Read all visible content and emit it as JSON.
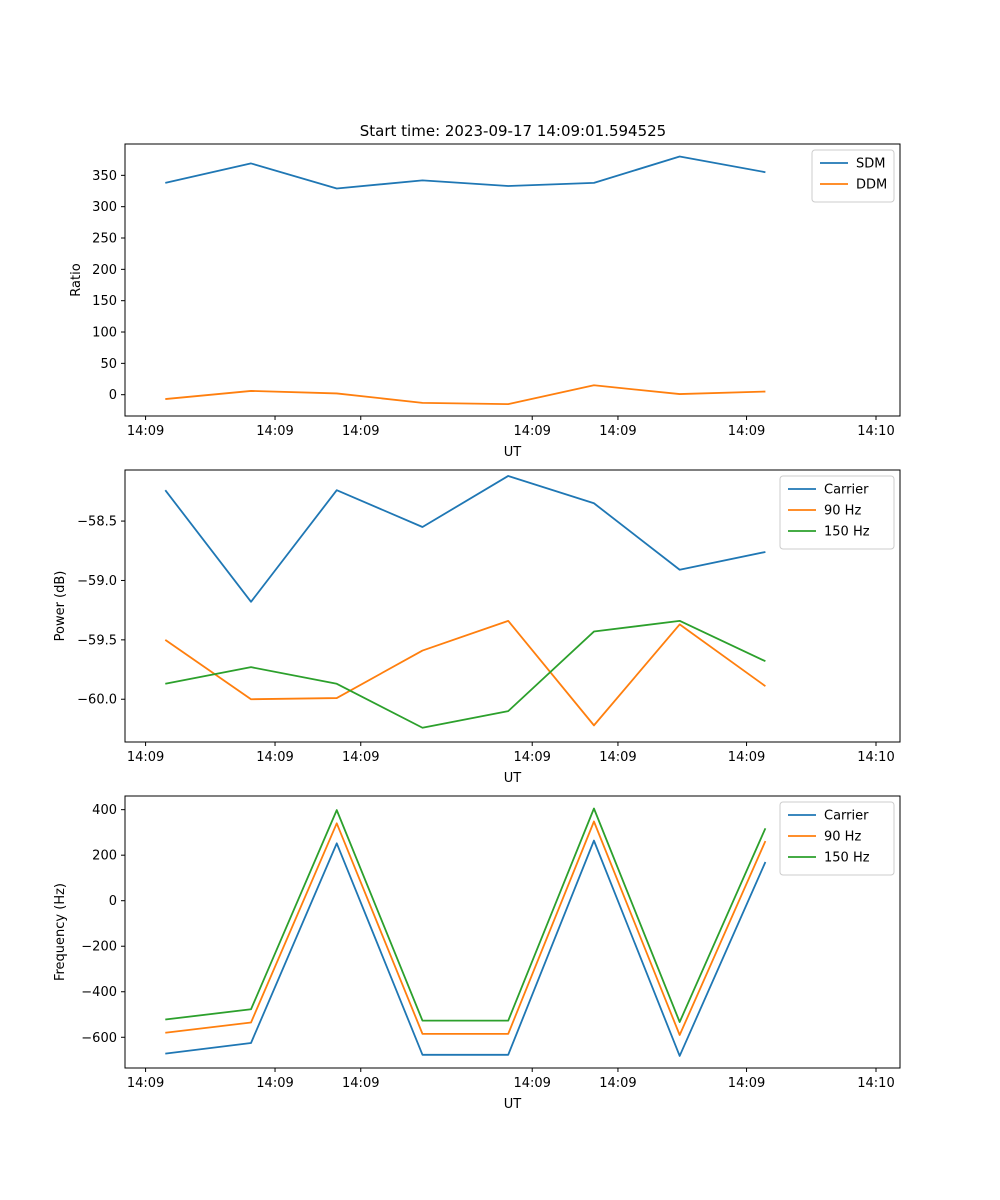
{
  "figure_title": "Start time: 2023-09-17 14:09:01.594525",
  "chart_data": [
    {
      "type": "line",
      "title": "Start time: 2023-09-17 14:09:01.594525",
      "xlabel": "UT",
      "ylabel": "Ratio",
      "x_index": [
        0,
        1,
        2,
        3,
        4,
        5,
        6,
        7
      ],
      "xlim": [
        -0.47,
        8.57
      ],
      "ylim": [
        -34,
        400
      ],
      "xticks": [
        {
          "value": -0.23,
          "label": "14:09"
        },
        {
          "value": 1.28,
          "label": "14:09"
        },
        {
          "value": 2.28,
          "label": "14:09"
        },
        {
          "value": 4.28,
          "label": "14:09"
        },
        {
          "value": 5.28,
          "label": "14:09"
        },
        {
          "value": 6.78,
          "label": "14:09"
        },
        {
          "value": 8.29,
          "label": "14:10"
        }
      ],
      "yticks": [
        0,
        50,
        100,
        150,
        200,
        250,
        300,
        350
      ],
      "ytick_labels": [
        "0",
        "50",
        "100",
        "150",
        "200",
        "250",
        "300",
        "350"
      ],
      "legend": "top-right",
      "series": [
        {
          "name": "SDM",
          "color": "#1f77b4",
          "values": [
            338,
            369,
            329,
            342,
            333,
            338,
            380,
            355
          ]
        },
        {
          "name": "DDM",
          "color": "#ff7f0e",
          "values": [
            -7,
            6,
            2,
            -13,
            -15,
            15,
            1,
            5
          ]
        }
      ]
    },
    {
      "type": "line",
      "xlabel": "UT",
      "ylabel": "Power (dB)",
      "x_index": [
        0,
        1,
        2,
        3,
        4,
        5,
        6,
        7
      ],
      "xlim": [
        -0.47,
        8.57
      ],
      "ylim": [
        -60.36,
        -58.07
      ],
      "xticks": [
        {
          "value": -0.23,
          "label": "14:09"
        },
        {
          "value": 1.28,
          "label": "14:09"
        },
        {
          "value": 2.28,
          "label": "14:09"
        },
        {
          "value": 4.28,
          "label": "14:09"
        },
        {
          "value": 5.28,
          "label": "14:09"
        },
        {
          "value": 6.78,
          "label": "14:09"
        },
        {
          "value": 8.29,
          "label": "14:10"
        }
      ],
      "yticks": [
        -60.0,
        -59.5,
        -59.0,
        -58.5
      ],
      "ytick_labels": [
        "−60.0",
        "−59.5",
        "−59.0",
        "−58.5"
      ],
      "legend": "top-right",
      "series": [
        {
          "name": "Carrier",
          "color": "#1f77b4",
          "values": [
            -58.24,
            -59.18,
            -58.24,
            -58.55,
            -58.12,
            -58.35,
            -58.91,
            -58.76
          ]
        },
        {
          "name": "90 Hz",
          "color": "#ff7f0e",
          "values": [
            -59.5,
            -60.0,
            -59.99,
            -59.59,
            -59.34,
            -60.22,
            -59.37,
            -59.89
          ]
        },
        {
          "name": "150 Hz",
          "color": "#2ca02c",
          "values": [
            -59.87,
            -59.73,
            -59.87,
            -60.24,
            -60.1,
            -59.43,
            -59.34,
            -59.68
          ]
        }
      ]
    },
    {
      "type": "line",
      "xlabel": "UT",
      "ylabel": "Frequency (Hz)",
      "x_index": [
        0,
        1,
        2,
        3,
        4,
        5,
        6,
        7
      ],
      "xlim": [
        -0.47,
        8.57
      ],
      "ylim": [
        -735,
        460
      ],
      "xticks": [
        {
          "value": -0.23,
          "label": "14:09"
        },
        {
          "value": 1.28,
          "label": "14:09"
        },
        {
          "value": 2.28,
          "label": "14:09"
        },
        {
          "value": 4.28,
          "label": "14:09"
        },
        {
          "value": 5.28,
          "label": "14:09"
        },
        {
          "value": 6.78,
          "label": "14:09"
        },
        {
          "value": 8.29,
          "label": "14:10"
        }
      ],
      "yticks": [
        -600,
        -400,
        -200,
        0,
        200,
        400
      ],
      "ytick_labels": [
        "−600",
        "−400",
        "−200",
        "0",
        "200",
        "400"
      ],
      "legend": "top-right",
      "series": [
        {
          "name": "Carrier",
          "color": "#1f77b4",
          "values": [
            -672,
            -625,
            252,
            -677,
            -677,
            264,
            -682,
            170
          ]
        },
        {
          "name": "90 Hz",
          "color": "#ff7f0e",
          "values": [
            -580,
            -535,
            340,
            -585,
            -585,
            348,
            -590,
            262
          ]
        },
        {
          "name": "150 Hz",
          "color": "#2ca02c",
          "values": [
            -522,
            -477,
            398,
            -527,
            -527,
            405,
            -533,
            318
          ]
        }
      ]
    }
  ]
}
